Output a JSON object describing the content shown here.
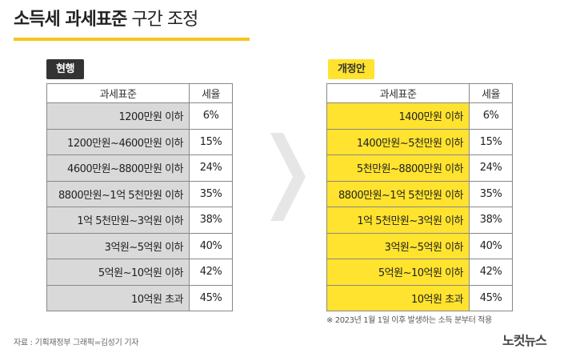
{
  "title": {
    "bold": "소득세 과세표준",
    "light": "구간 조정"
  },
  "current": {
    "badge": "현행",
    "headers": [
      "과세표준",
      "세율"
    ],
    "rows": [
      {
        "bracket": "1200만원 이하",
        "rate": "6%"
      },
      {
        "bracket": "1200만원~4600만원 이하",
        "rate": "15%"
      },
      {
        "bracket": "4600만원~8800만원 이하",
        "rate": "24%"
      },
      {
        "bracket": "8800만원~1억 5천만원 이하",
        "rate": "35%"
      },
      {
        "bracket": "1억 5천만원~3억원 이하",
        "rate": "38%"
      },
      {
        "bracket": "3억원~5억원 이하",
        "rate": "40%"
      },
      {
        "bracket": "5억원~10억원 이하",
        "rate": "42%"
      },
      {
        "bracket": "10억원 초과",
        "rate": "45%"
      }
    ]
  },
  "revised": {
    "badge": "개정안",
    "headers": [
      "과세표준",
      "세율"
    ],
    "rows": [
      {
        "bracket": "1400만원 이하",
        "rate": "6%"
      },
      {
        "bracket": "1400만원~5천만원 이하",
        "rate": "15%"
      },
      {
        "bracket": "5천만원~8800만원 이하",
        "rate": "24%"
      },
      {
        "bracket": "8800만원~1억 5천만원 이하",
        "rate": "35%"
      },
      {
        "bracket": "1억 5천만원~3억원 이하",
        "rate": "38%"
      },
      {
        "bracket": "3억원~5억원 이하",
        "rate": "40%"
      },
      {
        "bracket": "5억원~10억원 이하",
        "rate": "42%"
      },
      {
        "bracket": "10억원 초과",
        "rate": "45%"
      }
    ]
  },
  "note": "※ 2023년 1월 1일 이후 발생하는 소득 분부터 적용",
  "source": "자료 : 기획재정부   그래픽=김성기 기자",
  "logo": "노컷뉴스",
  "colors": {
    "accent": "#f5c51b",
    "highlight": "#ffe32e",
    "current_cell": "#d9d9d9",
    "dark_badge": "#333333"
  },
  "icons": {
    "arrow": "chevron-right-icon"
  }
}
